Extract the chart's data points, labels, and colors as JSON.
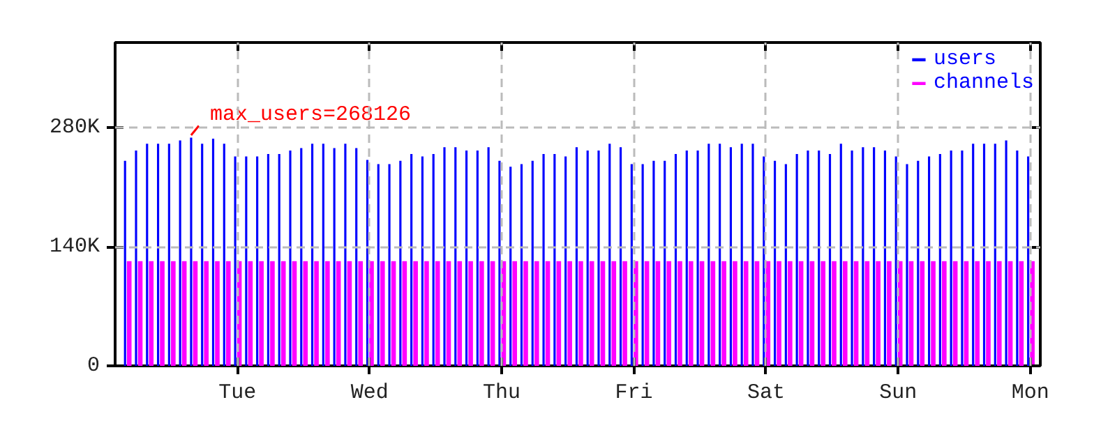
{
  "chart_data": {
    "type": "bar",
    "categories": [
      null,
      null,
      null,
      null,
      null,
      null,
      null,
      null,
      null,
      null,
      "Tue",
      null,
      null,
      null,
      null,
      null,
      null,
      null,
      null,
      null,
      null,
      null,
      "Wed",
      null,
      null,
      null,
      null,
      null,
      null,
      null,
      null,
      null,
      null,
      null,
      "Thu",
      null,
      null,
      null,
      null,
      null,
      null,
      null,
      null,
      null,
      null,
      null,
      "Fri",
      null,
      null,
      null,
      null,
      null,
      null,
      null,
      null,
      null,
      null,
      null,
      "Sat",
      null,
      null,
      null,
      null,
      null,
      null,
      null,
      null,
      null,
      null,
      null,
      "Sun",
      null,
      null,
      null,
      null,
      null,
      null,
      null,
      null,
      null,
      null,
      null,
      "Mon"
    ],
    "series": [
      {
        "name": "users",
        "color": "#0000ff",
        "values": [
          241000,
          253000,
          261000,
          261000,
          261000,
          265000,
          268126,
          261000,
          267000,
          261000,
          246000,
          246000,
          246000,
          249000,
          249000,
          253000,
          256000,
          261000,
          261000,
          256000,
          261000,
          256000,
          242000,
          237000,
          237000,
          241000,
          249000,
          246000,
          249000,
          257000,
          257000,
          253000,
          253000,
          257000,
          241000,
          234000,
          237000,
          241000,
          249000,
          249000,
          246000,
          257000,
          253000,
          253000,
          261000,
          257000,
          237000,
          237000,
          241000,
          241000,
          249000,
          253000,
          253000,
          261000,
          261000,
          257000,
          261000,
          261000,
          246000,
          241000,
          237000,
          249000,
          253000,
          253000,
          249000,
          261000,
          253000,
          257000,
          257000,
          253000,
          246000,
          237000,
          241000,
          246000,
          249000,
          253000,
          253000,
          261000,
          261000,
          261000,
          265000,
          253000,
          246000
        ]
      },
      {
        "name": "channels",
        "color": "#ff00ff",
        "values": [
          123000,
          123000,
          123000,
          123000,
          123000,
          123000,
          123000,
          123000,
          123000,
          123000,
          123000,
          123000,
          123000,
          123000,
          123000,
          123000,
          123000,
          123000,
          123000,
          123000,
          123000,
          123000,
          123000,
          123000,
          123000,
          123000,
          123000,
          123000,
          123000,
          123000,
          123000,
          123000,
          123000,
          123000,
          123000,
          123000,
          123000,
          123000,
          123000,
          123000,
          123000,
          123000,
          123000,
          123000,
          123000,
          123000,
          123000,
          123000,
          123000,
          123000,
          123000,
          123000,
          123000,
          123000,
          123000,
          123000,
          123000,
          123000,
          123000,
          123000,
          123000,
          123000,
          123000,
          123000,
          123000,
          123000,
          123000,
          123000,
          123000,
          123000,
          123000,
          123000,
          123000,
          123000,
          123000,
          123000,
          123000,
          123000,
          123000,
          123000,
          123000,
          123000,
          123000
        ]
      }
    ],
    "ylim": [
      0,
      380000
    ],
    "yticks": [
      0,
      {
        "value": 140000,
        "label": "140K"
      },
      {
        "value": 280000,
        "label": "280K"
      }
    ],
    "annotations": [
      {
        "text": "max_users=268126",
        "y": 268126
      }
    ],
    "grid": true,
    "legend": "top right"
  }
}
